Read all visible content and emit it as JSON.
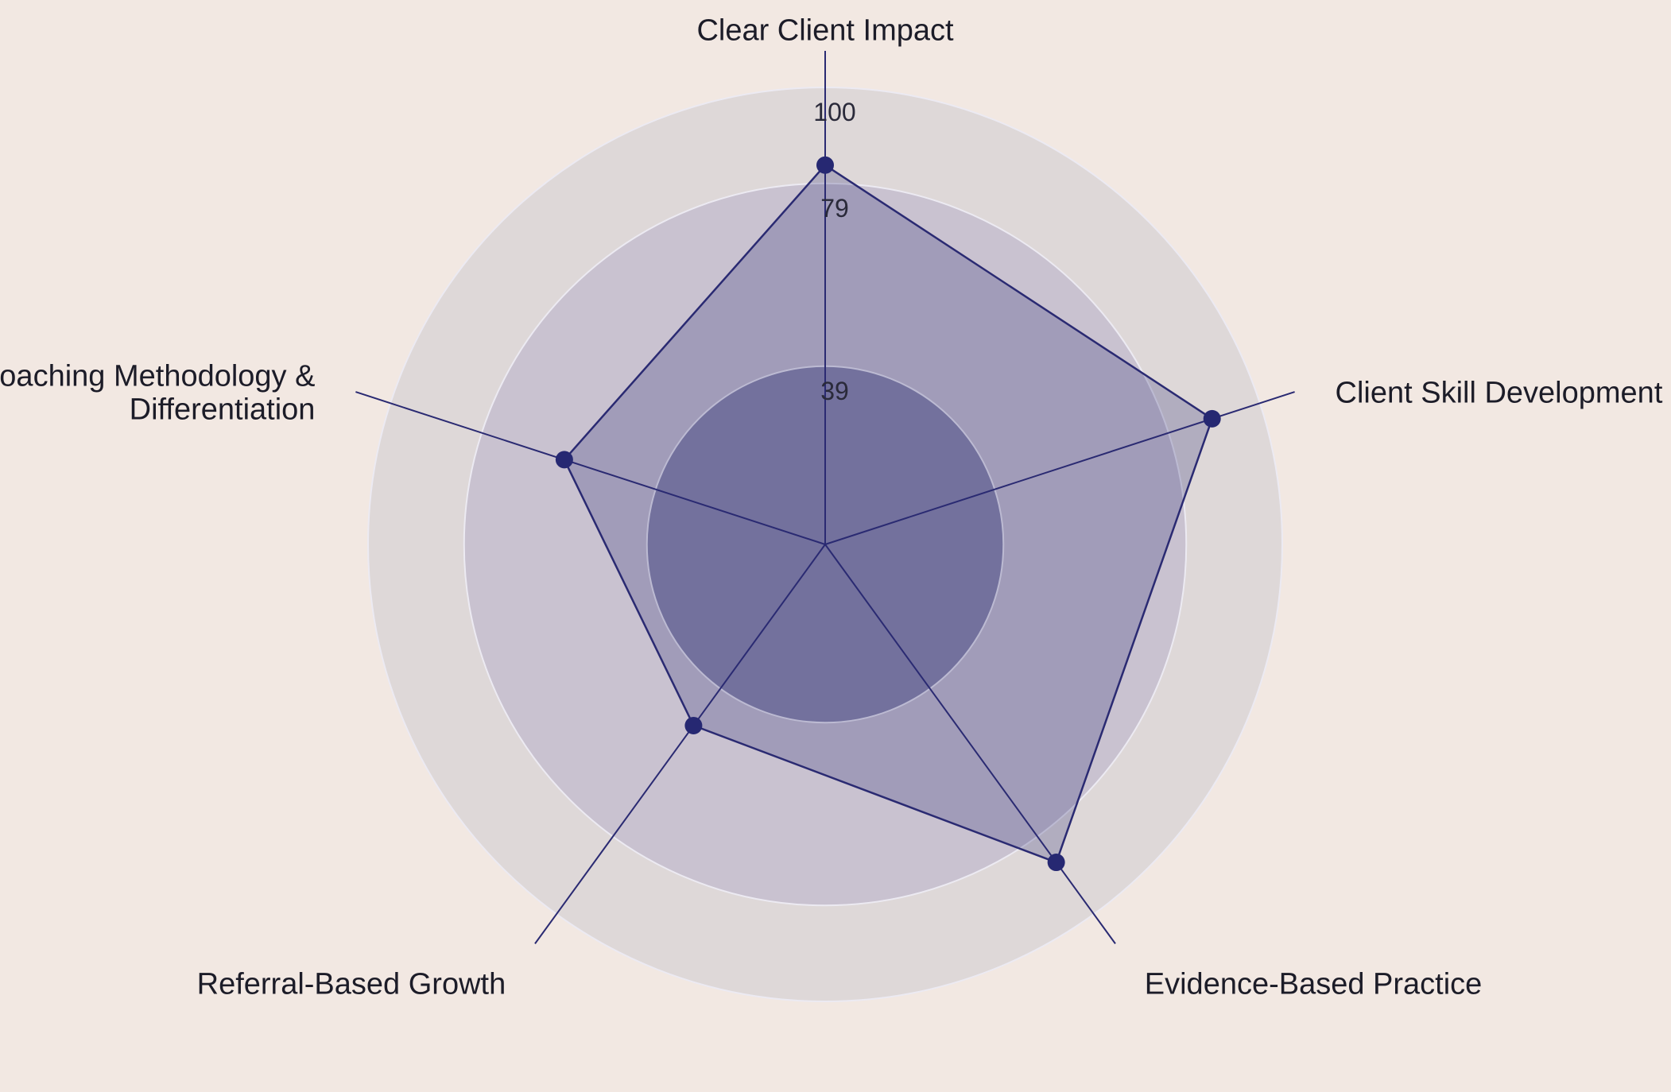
{
  "chart_data": {
    "type": "radar",
    "categories": [
      "Clear Client Impact",
      "Client Skill Development",
      "Evidence-Based Practice",
      "Referral-Based Growth",
      "Coaching Methodology & Differentiation"
    ],
    "category_lines": [
      [
        "Clear Client Impact"
      ],
      [
        "Client Skill Development"
      ],
      [
        "Evidence-Based Practice"
      ],
      [
        "Referral-Based Growth"
      ],
      [
        "Coaching Methodology &",
        "Differentiation"
      ]
    ],
    "values": [
      83,
      89,
      86,
      49,
      60
    ],
    "ring_ticks": [
      39,
      79,
      100
    ],
    "range": [
      0,
      100
    ],
    "colors": {
      "background": "#f2e8e2",
      "outer_band": "#ded8d8",
      "middle_band": "#c9c2d0",
      "inner_band": "#8b89ab",
      "fill": "#2a2a72",
      "line": "#2a2a72",
      "marker": "#262872",
      "grid": "#eceaf2"
    }
  }
}
